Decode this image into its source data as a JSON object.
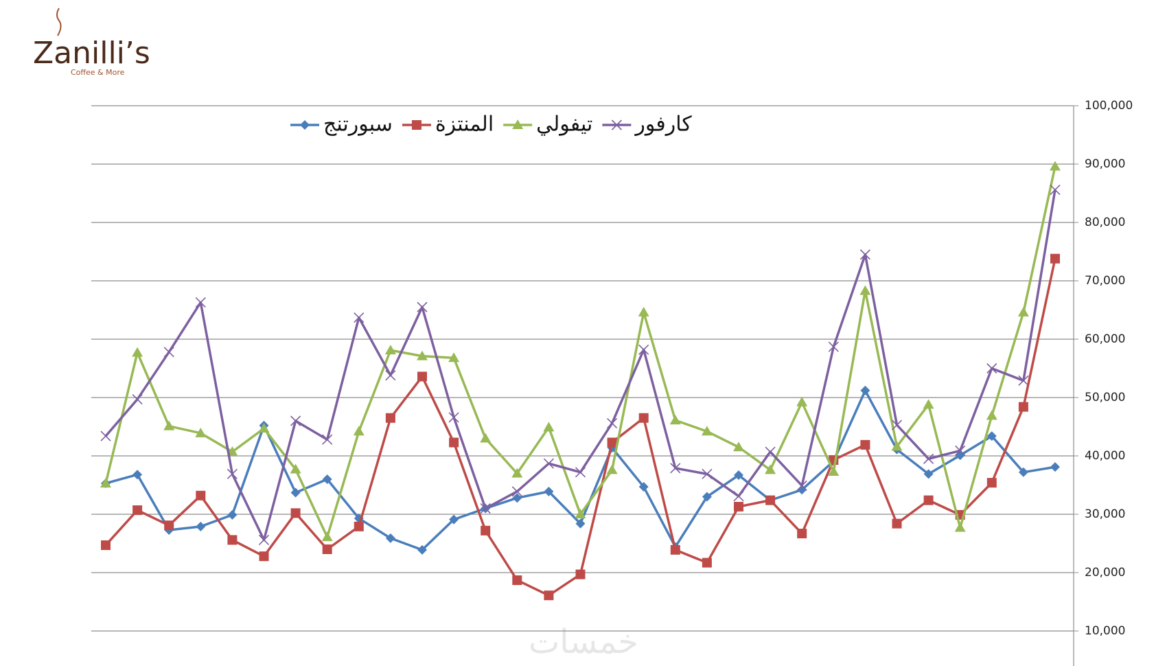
{
  "logo": {
    "name": "Zanilli’s",
    "tagline": "Coffee & More"
  },
  "watermark": "خمسات",
  "chart_data": {
    "type": "line",
    "categories": [
      null,
      null,
      null,
      null,
      null,
      null,
      null,
      null,
      null,
      null,
      null,
      null,
      null,
      null,
      null,
      null,
      null,
      null,
      null,
      null,
      null,
      null,
      null,
      null,
      null,
      null,
      null,
      null,
      null,
      null,
      null
    ],
    "series": [
      {
        "name": "سبورتنج",
        "color": "#4a7ebb",
        "marker": "diamond",
        "values": [
          35300,
          36800,
          27300,
          27900,
          29900,
          45200,
          33700,
          36000,
          29300,
          25900,
          23900,
          29100,
          31000,
          32800,
          33900,
          28400,
          41400,
          34700,
          24400,
          33000,
          36700,
          32400,
          34200,
          39100,
          51200,
          41100,
          36900,
          40100,
          43400,
          37200,
          38100
        ]
      },
      {
        "name": "المنتزة",
        "color": "#be4b48",
        "marker": "square",
        "values": [
          24700,
          30700,
          28100,
          33200,
          25600,
          22800,
          30200,
          24000,
          27900,
          46500,
          53600,
          42300,
          27200,
          18700,
          16100,
          19700,
          42300,
          46500,
          23900,
          21700,
          31300,
          32400,
          26700,
          39300,
          41900,
          28400,
          32400,
          29900,
          35400,
          48400,
          73800
        ]
      },
      {
        "name": "تيفولي",
        "color": "#98b954",
        "marker": "triangle",
        "values": [
          35300,
          57700,
          45100,
          43900,
          40700,
          44700,
          37700,
          26100,
          44200,
          58100,
          57100,
          56800,
          43000,
          37000,
          44900,
          30000,
          37600,
          64600,
          46100,
          44200,
          41500,
          37600,
          49200,
          37300,
          68300,
          41600,
          48800,
          27700,
          46900,
          64600,
          89600
        ]
      },
      {
        "name": "كارفور",
        "color": "#7d60a0",
        "marker": "x",
        "values": [
          43400,
          49700,
          57800,
          66300,
          36900,
          25600,
          46000,
          42800,
          63700,
          53800,
          65500,
          46600,
          31000,
          33900,
          38700,
          37200,
          45600,
          58200,
          37900,
          36900,
          33100,
          40700,
          34900,
          58700,
          74500,
          45300,
          39500,
          40900,
          55000,
          52900,
          85600
        ]
      }
    ],
    "ylim": [
      0,
      100000
    ],
    "yticks": [
      {
        "value": 10000,
        "label": "10,000"
      },
      {
        "value": 20000,
        "label": "20,000"
      },
      {
        "value": 30000,
        "label": "30,000"
      },
      {
        "value": 40000,
        "label": "40,000"
      },
      {
        "value": 50000,
        "label": "50,000"
      },
      {
        "value": 60000,
        "label": "60,000"
      },
      {
        "value": 70000,
        "label": "70,000"
      },
      {
        "value": 80000,
        "label": "80,000"
      },
      {
        "value": 90000,
        "label": "90,000"
      },
      {
        "value": 100000,
        "label": "100,000"
      }
    ],
    "grid": true,
    "legend": "top"
  }
}
